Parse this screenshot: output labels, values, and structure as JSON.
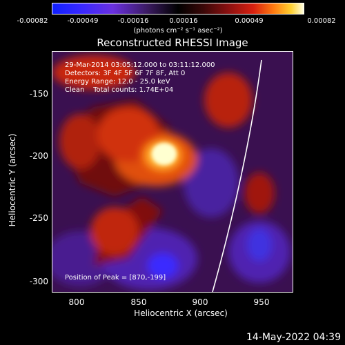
{
  "colorbar": {
    "ticks": [
      "-0.00082",
      "-0.00049",
      "-0.00016",
      "0.00016",
      "0.00049",
      "0.00082"
    ],
    "units": "(photons cm⁻² s⁻¹ asec⁻²)"
  },
  "title": "Reconstructed RHESSI Image",
  "info": {
    "time_range": "29-Mar-2014 03:05:12.000 to 03:11:12.000",
    "detectors": "Detectors: 3F 4F 5F 6F 7F 8F, Att 0",
    "energy": "Energy Range: 12.0 - 25.0 keV",
    "clean": "Clean    Total counts: 1.74E+04",
    "peak": "Position of Peak = [870,-199]"
  },
  "axes": {
    "xlabel": "Heliocentric X (arcsec)",
    "ylabel": "Heliocentric Y (arcsec)",
    "xticks": [
      "800",
      "850",
      "900",
      "950"
    ],
    "yticks": [
      "-150",
      "-200",
      "-250",
      "-300"
    ]
  },
  "footer": {
    "timestamp": "14-May-2022 04:39"
  },
  "colors": {
    "background": "#000000",
    "limb": "#ffffff",
    "peak": "#ffffd0"
  }
}
